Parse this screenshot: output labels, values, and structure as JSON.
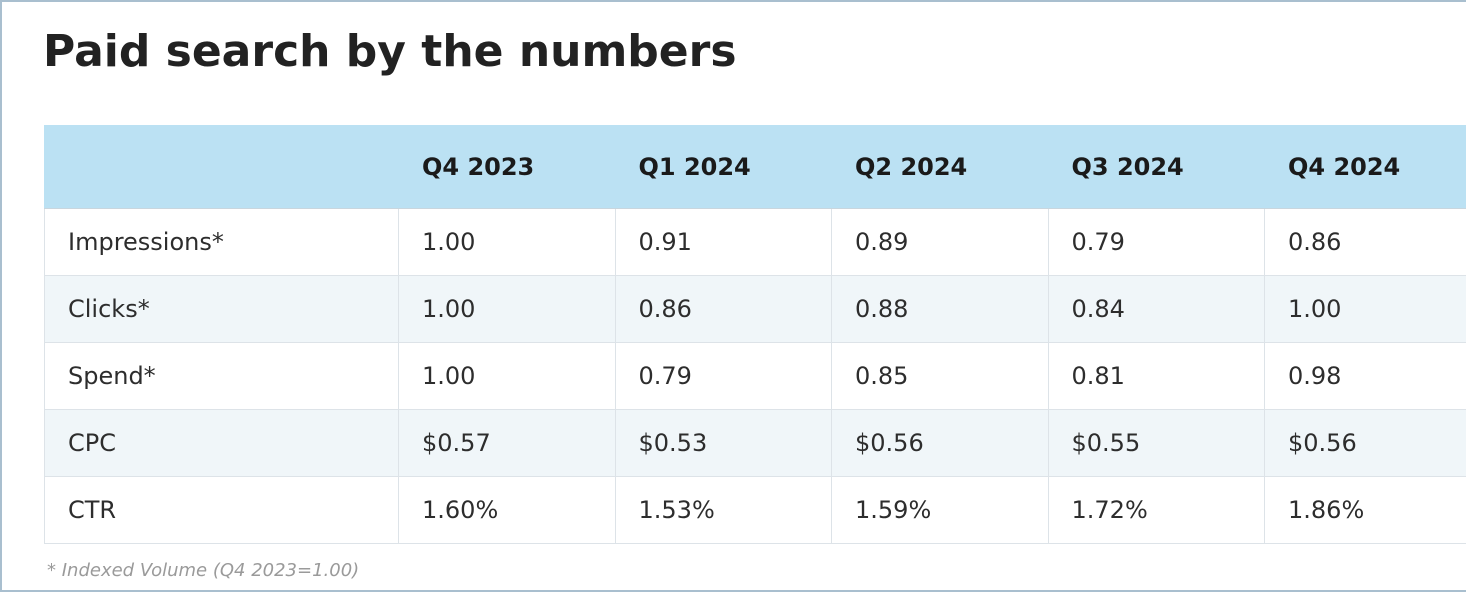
{
  "chart_data": {
    "type": "table",
    "title": "Paid search by the numbers",
    "columns": [
      "",
      "Q4 2023",
      "Q1 2024",
      "Q2 2024",
      "Q3 2024",
      "Q4 2024"
    ],
    "rows": [
      [
        "Impressions*",
        "1.00",
        "0.91",
        "0.89",
        "0.79",
        "0.86"
      ],
      [
        "Clicks*",
        "1.00",
        "0.86",
        "0.88",
        "0.84",
        "1.00"
      ],
      [
        "Spend*",
        "1.00",
        "0.79",
        "0.85",
        "0.81",
        "0.98"
      ],
      [
        "CPC",
        "$0.57",
        "$0.53",
        "$0.56",
        "$0.55",
        "$0.56"
      ],
      [
        "CTR",
        "1.60%",
        "1.53%",
        "1.59%",
        "1.72%",
        "1.86%"
      ]
    ],
    "footnote": "* Indexed Volume (Q4 2023=1.00)"
  },
  "colors": {
    "header_background": "#bbe1f3",
    "row_alt_background": "#f0f6f9",
    "title_text": "#222222",
    "footnote_text": "#9a9a9a"
  }
}
